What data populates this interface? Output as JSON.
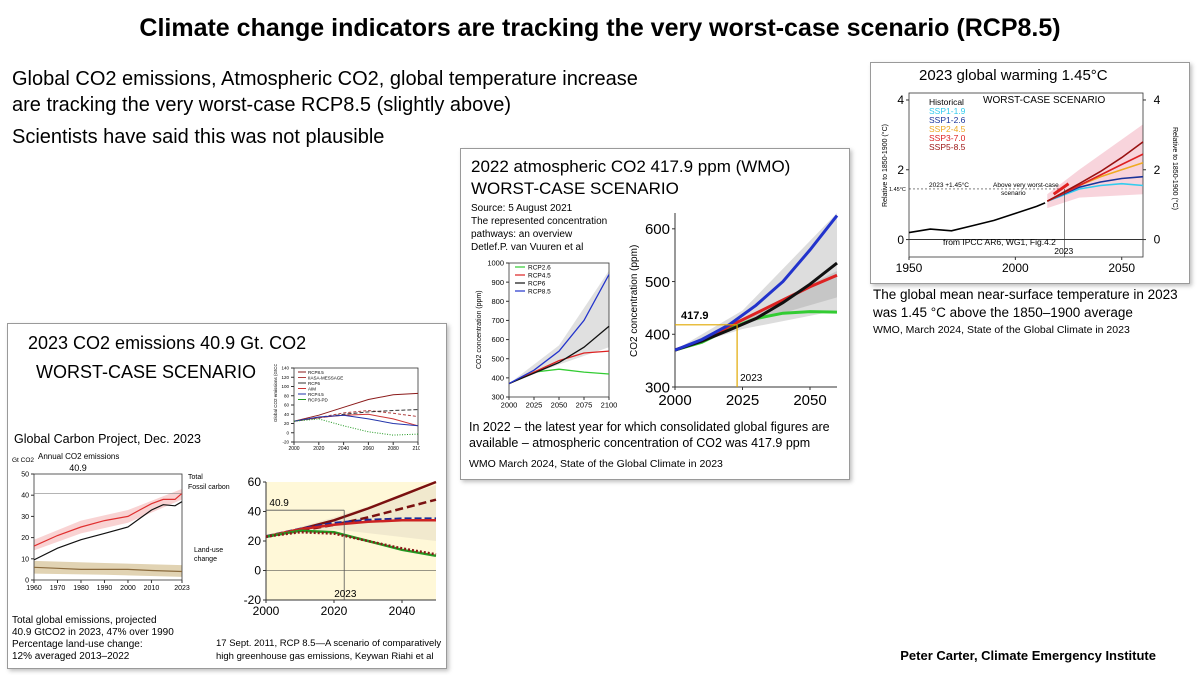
{
  "title": "Climate change indicators are tracking the very worst-case scenario (RCP8.5)",
  "intro": {
    "line1": "Global CO2 emissions, Atmospheric CO2, global temperature increase",
    "line2": "are tracking the very worst-case RCP8.5 (slightly above)",
    "line3": "Scientists have said this was not plausible"
  },
  "credit": "Peter Carter, Climate Emergency Institute",
  "emissions_panel": {
    "heading": "2023 CO2 emissions 40.9 Gt. CO2",
    "scenario": "WORST-CASE SCENARIO",
    "gcp_title": "Global Carbon Project, Dec. 2023",
    "note1": "Total global emissions, projected",
    "note2": "40.9 GtCO2 in 2023, 47% over 1990",
    "note3": "Percentage land-use change:",
    "note4": "12% averaged 2013–2022",
    "riahi1": "17 Sept. 2011, RCP 8.5—A scenario of comparatively",
    "riahi2": "high greenhouse gas emissions, Keywan Riahi et al"
  },
  "co2_panel": {
    "heading1": "2022 atmospheric CO2  417.9 ppm (WMO)",
    "heading2": "WORST-CASE SCENARIO",
    "source1": "Source: 5 August 2021",
    "source2": "The represented concentration",
    "source3": "pathways: an overview",
    "source4": "Detlef.P. van Vuuren et al",
    "caption1": "In 2022 – the latest year for which consolidated global figures are",
    "caption2": "available – atmospheric concentration of CO2 was 417.9 ppm",
    "caption3": "WMO  March 2024,  State of the Global Climate in 2023"
  },
  "temp_panel": {
    "heading": "2023 global warming 1.45°C",
    "caption1": "The global mean near-surface temperature in 2023",
    "caption2": "was 1.45 °C above the 1850–1900 average",
    "caption3": "WMO, March 2024, State of the Global Climate in 2023"
  },
  "chart_data": [
    {
      "id": "gcp-annual-co2",
      "type": "line",
      "title": "Annual CO2 emissions",
      "ylabel": "Gt CO2",
      "ylim": [
        0,
        50
      ],
      "xlim": [
        1960,
        2023
      ],
      "x_ticks": [
        "1960",
        "1970",
        "1980",
        "1990",
        "2000",
        "2010",
        "2023"
      ],
      "y_ticks": [
        "0",
        "10",
        "20",
        "30",
        "40",
        "50"
      ],
      "annotation": "40.9",
      "series": [
        {
          "name": "Total",
          "color": "#e03030",
          "x": [
            1960,
            1970,
            1980,
            1990,
            2000,
            2005,
            2010,
            2015,
            2020,
            2023
          ],
          "y": [
            16,
            21,
            25,
            28,
            30,
            33,
            36,
            38,
            38,
            40.9
          ]
        },
        {
          "name": "Fossil carbon",
          "color": "#111111",
          "x": [
            1960,
            1970,
            1980,
            1990,
            2000,
            2005,
            2010,
            2015,
            2020,
            2023
          ],
          "y": [
            9.5,
            15,
            19,
            22,
            25,
            29,
            33,
            35.5,
            35,
            37
          ]
        },
        {
          "name": "Land-use change",
          "color": "#8b6b3d",
          "x": [
            1960,
            1970,
            1980,
            1990,
            2000,
            2010,
            2023
          ],
          "y": [
            6,
            5.5,
            5,
            5,
            5,
            4.5,
            4
          ]
        }
      ],
      "series_labels": [
        "Total",
        "Fossil carbon",
        "Land-use",
        "change"
      ]
    },
    {
      "id": "rcp-emissions-small",
      "type": "line",
      "ylabel": "Global CO2 emissions (GtCO2)",
      "xlim": [
        2000,
        2100
      ],
      "ylim": [
        -20,
        140
      ],
      "x_ticks": [
        "2000",
        "2020",
        "2040",
        "2060",
        "2080",
        "2100"
      ],
      "y_ticks": [
        "-20",
        "0",
        "20",
        "40",
        "60",
        "80",
        "100",
        "120",
        "140"
      ],
      "legend": [
        "RCP8.5",
        "IIASA-MESSAGE",
        "RCP6",
        "AIM",
        "RCP4.5",
        "RCP3-PD"
      ],
      "series": [
        {
          "name": "RCP8.5",
          "color": "#8b1a1a",
          "x": [
            2000,
            2020,
            2040,
            2060,
            2080,
            2100
          ],
          "y": [
            25,
            38,
            55,
            72,
            82,
            85
          ]
        },
        {
          "name": "IIASA-MESSAGE",
          "color": "#b04040",
          "x": [
            2000,
            2020,
            2040,
            2060,
            2080,
            2100
          ],
          "y": [
            25,
            33,
            43,
            48,
            42,
            35
          ]
        },
        {
          "name": "RCP6",
          "color": "#333333",
          "x": [
            2000,
            2020,
            2040,
            2060,
            2080,
            2100
          ],
          "y": [
            25,
            32,
            40,
            45,
            48,
            50
          ]
        },
        {
          "name": "AIM",
          "color": "#cc3333",
          "x": [
            2000,
            2020,
            2040,
            2060,
            2080,
            2100
          ],
          "y": [
            25,
            33,
            38,
            40,
            30,
            15
          ]
        },
        {
          "name": "RCP4.5",
          "color": "#2233aa",
          "x": [
            2000,
            2020,
            2040,
            2060,
            2080,
            2100
          ],
          "y": [
            25,
            34,
            38,
            30,
            20,
            15
          ]
        },
        {
          "name": "RCP3-PD",
          "color": "#229922",
          "x": [
            2000,
            2020,
            2040,
            2060,
            2080,
            2100
          ],
          "y": [
            25,
            30,
            15,
            2,
            -5,
            -3
          ]
        }
      ]
    },
    {
      "id": "rcp-emissions-zoom",
      "type": "line",
      "xlim": [
        2000,
        2050
      ],
      "ylim": [
        -20,
        60
      ],
      "x_ticks": [
        "2000",
        "2020",
        "2040"
      ],
      "y_ticks": [
        "-20",
        "0",
        "20",
        "40",
        "60"
      ],
      "annotation": "40.9",
      "marker_label": "2023",
      "series": [
        {
          "name": "RCP8.5",
          "color": "#7a1010",
          "x": [
            2000,
            2010,
            2020,
            2030,
            2040,
            2050
          ],
          "y": [
            23,
            28,
            34,
            42,
            51,
            60
          ]
        },
        {
          "name": "IIASA-MESSAGE",
          "color": "#7a1010",
          "x": [
            2000,
            2010,
            2020,
            2030,
            2040,
            2050
          ],
          "y": [
            23,
            27,
            31,
            36,
            42,
            48
          ]
        },
        {
          "name": "RCP6",
          "color": "#1a2a99",
          "x": [
            2000,
            2010,
            2020,
            2030,
            2040,
            2050
          ],
          "y": [
            23,
            28,
            32,
            34,
            35,
            35
          ]
        },
        {
          "name": "RCP4.5",
          "color": "#cc2222",
          "x": [
            2000,
            2010,
            2020,
            2030,
            2040,
            2050
          ],
          "y": [
            23,
            28,
            31,
            33,
            34,
            34
          ]
        },
        {
          "name": "RCP3-PD",
          "color": "#229922",
          "x": [
            2000,
            2010,
            2020,
            2030,
            2040,
            2050
          ],
          "y": [
            23,
            27,
            26,
            20,
            14,
            10
          ]
        },
        {
          "name": "AIM",
          "color": "#8b1a1a",
          "x": [
            2000,
            2010,
            2020,
            2030,
            2040,
            2050
          ],
          "y": [
            23,
            26,
            25,
            20,
            15,
            11
          ]
        }
      ]
    },
    {
      "id": "rcp-concentration-small",
      "type": "line",
      "ylabel": "CO2 concentration (ppm)",
      "xlim": [
        2000,
        2100
      ],
      "ylim": [
        300,
        1000
      ],
      "x_ticks": [
        "2000",
        "2025",
        "2050",
        "2075",
        "2100"
      ],
      "y_ticks": [
        "300",
        "400",
        "500",
        "600",
        "700",
        "800",
        "900",
        "1000"
      ],
      "legend": [
        "RCP2.6",
        "RCP4.5",
        "RCP6",
        "RCP8.5"
      ],
      "series": [
        {
          "name": "RCP2.6",
          "color": "#33cc33",
          "x": [
            2000,
            2025,
            2050,
            2075,
            2100
          ],
          "y": [
            370,
            430,
            445,
            430,
            420
          ]
        },
        {
          "name": "RCP4.5",
          "color": "#dd2222",
          "x": [
            2000,
            2025,
            2050,
            2075,
            2100
          ],
          "y": [
            370,
            430,
            490,
            530,
            540
          ]
        },
        {
          "name": "RCP6",
          "color": "#111111",
          "x": [
            2000,
            2025,
            2050,
            2075,
            2100
          ],
          "y": [
            370,
            425,
            480,
            560,
            670
          ]
        },
        {
          "name": "RCP8.5",
          "color": "#2233cc",
          "x": [
            2000,
            2025,
            2050,
            2075,
            2100
          ],
          "y": [
            370,
            440,
            540,
            700,
            940
          ]
        }
      ]
    },
    {
      "id": "rcp-concentration-zoom",
      "type": "line",
      "ylabel": "CO2 concentration (ppm)",
      "xlim": [
        2000,
        2060
      ],
      "ylim": [
        300,
        630
      ],
      "x_ticks": [
        "2000",
        "2025",
        "2050"
      ],
      "y_ticks": [
        "300",
        "400",
        "500",
        "600"
      ],
      "annotation": "417.9",
      "marker_label": "2023",
      "series": [
        {
          "name": "RCP2.6",
          "color": "#33cc33",
          "x": [
            2000,
            2010,
            2020,
            2030,
            2040,
            2050,
            2060
          ],
          "y": [
            370,
            385,
            410,
            430,
            440,
            443,
            442
          ]
        },
        {
          "name": "RCP4.5",
          "color": "#dd2222",
          "x": [
            2000,
            2010,
            2020,
            2030,
            2040,
            2050,
            2060
          ],
          "y": [
            370,
            388,
            415,
            440,
            465,
            490,
            512
          ]
        },
        {
          "name": "RCP6",
          "color": "#111111",
          "x": [
            2000,
            2010,
            2020,
            2030,
            2040,
            2050,
            2060
          ],
          "y": [
            370,
            387,
            408,
            430,
            460,
            495,
            535
          ]
        },
        {
          "name": "RCP8.5",
          "color": "#2233cc",
          "x": [
            2000,
            2010,
            2020,
            2030,
            2040,
            2050,
            2060
          ],
          "y": [
            370,
            390,
            418,
            455,
            500,
            560,
            625
          ]
        }
      ]
    },
    {
      "id": "ipcc-temperature",
      "type": "line",
      "title": "WORST-CASE SCENARIO",
      "ylabel": "Relative to 1850-1900 (°C)",
      "xlim": [
        1950,
        2060
      ],
      "ylim": [
        -0.5,
        4.2
      ],
      "x_ticks": [
        "1950",
        "2000",
        "2050"
      ],
      "y_ticks": [
        "0",
        "2",
        "4"
      ],
      "annotation": "2023 +1.45°C",
      "annotation2": "Above very worst-case",
      "annotation3": "scenario",
      "annotation4": "1.45°C",
      "source_note": "from IPCC AR6, WG1, Fig.4.2",
      "marker_label": "2023",
      "legend": [
        "Historical",
        "SSP1-1.9",
        "SSP1-2.6",
        "SSP2-4.5",
        "SSP3-7.0",
        "SSP5-8.5"
      ],
      "series": [
        {
          "name": "Historical",
          "color": "#000000",
          "x": [
            1950,
            1960,
            1970,
            1980,
            1990,
            2000,
            2010,
            2014
          ],
          "y": [
            0.2,
            0.3,
            0.25,
            0.4,
            0.55,
            0.75,
            0.95,
            1.05
          ]
        },
        {
          "name": "SSP1-1.9",
          "color": "#33ccee",
          "x": [
            2015,
            2030,
            2040,
            2050,
            2060
          ],
          "y": [
            1.1,
            1.45,
            1.55,
            1.6,
            1.55
          ]
        },
        {
          "name": "SSP1-2.6",
          "color": "#1a3399",
          "x": [
            2015,
            2030,
            2040,
            2050,
            2060
          ],
          "y": [
            1.1,
            1.5,
            1.65,
            1.75,
            1.8
          ]
        },
        {
          "name": "SSP2-4.5",
          "color": "#eeaa22",
          "x": [
            2015,
            2030,
            2040,
            2050,
            2060
          ],
          "y": [
            1.1,
            1.55,
            1.8,
            2.0,
            2.2
          ]
        },
        {
          "name": "SSP3-7.0",
          "color": "#dd2222",
          "x": [
            2015,
            2030,
            2040,
            2050,
            2060
          ],
          "y": [
            1.1,
            1.55,
            1.85,
            2.15,
            2.45
          ]
        },
        {
          "name": "SSP5-8.5",
          "color": "#991111",
          "x": [
            2015,
            2030,
            2040,
            2050,
            2060
          ],
          "y": [
            1.1,
            1.6,
            1.95,
            2.35,
            2.8
          ]
        }
      ]
    }
  ]
}
